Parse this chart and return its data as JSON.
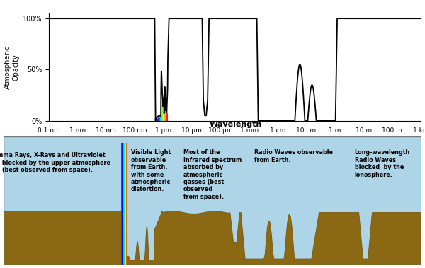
{
  "ylabel": "Atmospheric\nOpacity",
  "ytick_labels": [
    "0%",
    "50%",
    "100%"
  ],
  "x_tick_labels": [
    "0.1 nm",
    "1 nm",
    "10 nm",
    "100 nm",
    "1 μm",
    "10 μm",
    "100 μm",
    "1 mm",
    "1 cm",
    "10 cm",
    "1 m",
    "10 m",
    "100 m",
    "1 km"
  ],
  "bg_color_sky": "#aed4e8",
  "bg_color_ground": "#8B6914",
  "bg_color_ground_edge": "#7a5c10",
  "xlabel_text": "Wavelength",
  "section_texts": [
    "Gamma Rays, X-Rays and Ultraviolet\nLight blocked by the upper atmosphere\n(best observed from space).",
    "Visible Light\nobservable\nfrom Earth,\nwith some\natmospheric\ndistortion.",
    "Most of the\nInfrared spectrum\nabsorbed by\natmospheric\ngasses (best\nobserved\nfrom space).",
    "Radio Waves observable\nfrom Earth.",
    "Long-wavelength\nRadio Waves\nblocked  by the\nionosphere."
  ],
  "spectrum_colors": [
    "#8B00FF",
    "#4400EE",
    "#0000FF",
    "#0066FF",
    "#00CCFF",
    "#00FF88",
    "#88FF00",
    "#FFFF00",
    "#FFAA00",
    "#FF5500",
    "#FF0000"
  ]
}
